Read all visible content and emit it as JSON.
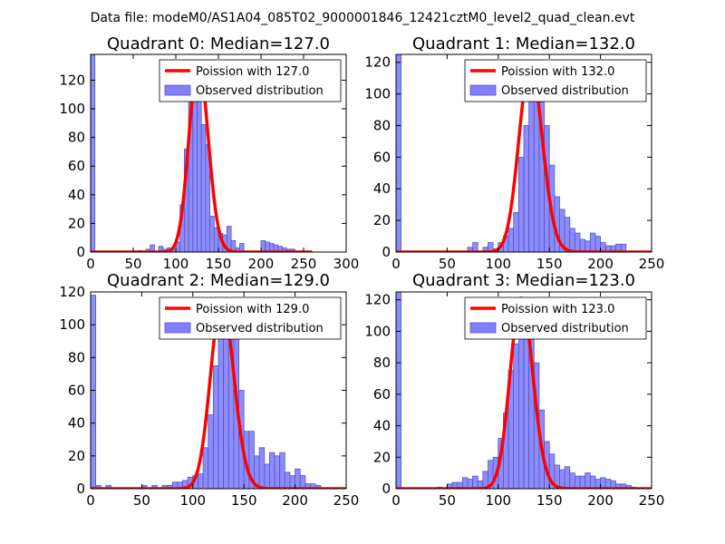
{
  "figure_title": "Data file: modeM0/AS1A04_085T02_9000001846_12421cztM0_level2_quad_clean.evt",
  "colors": {
    "bar_fill": "#8080ff",
    "bar_edge": "#5555bb",
    "curve": "#ff0000"
  },
  "chart_data": [
    {
      "type": "bar",
      "title": "Quadrant 0: Median=127.0",
      "median": 127.0,
      "legend": {
        "line_label": "Poission with 127.0",
        "bar_label": "Observed distribution",
        "placement": "top-right"
      },
      "xlim": [
        0,
        300
      ],
      "ylim": [
        0,
        138
      ],
      "xticks": [
        0,
        50,
        100,
        150,
        200,
        250,
        300
      ],
      "yticks": [
        0,
        20,
        40,
        60,
        80,
        100,
        120
      ],
      "bin_width": 5,
      "bins": [
        [
          0,
          138
        ],
        [
          55,
          1
        ],
        [
          65,
          2
        ],
        [
          70,
          5
        ],
        [
          80,
          4
        ],
        [
          85,
          2
        ],
        [
          90,
          3
        ],
        [
          95,
          2
        ],
        [
          100,
          7
        ],
        [
          105,
          33
        ],
        [
          110,
          72
        ],
        [
          115,
          118
        ],
        [
          120,
          125
        ],
        [
          125,
          127
        ],
        [
          130,
          89
        ],
        [
          135,
          75
        ],
        [
          140,
          25
        ],
        [
          145,
          17
        ],
        [
          150,
          13
        ],
        [
          155,
          12
        ],
        [
          160,
          18
        ],
        [
          165,
          8
        ],
        [
          170,
          3
        ],
        [
          175,
          6
        ],
        [
          200,
          8
        ],
        [
          205,
          7
        ],
        [
          210,
          6
        ],
        [
          215,
          5
        ],
        [
          220,
          4
        ],
        [
          225,
          3
        ],
        [
          230,
          2
        ],
        [
          235,
          2
        ]
      ],
      "curve_peak": 133
    },
    {
      "type": "bar",
      "title": "Quadrant 1: Median=132.0",
      "median": 132.0,
      "legend": {
        "line_label": "Poission with 132.0",
        "bar_label": "Observed distribution",
        "placement": "top-right"
      },
      "xlim": [
        0,
        250
      ],
      "ylim": [
        0,
        125
      ],
      "xticks": [
        0,
        50,
        100,
        150,
        200,
        250
      ],
      "yticks": [
        0,
        20,
        40,
        60,
        80,
        100,
        120
      ],
      "bin_width": 5,
      "bins": [
        [
          0,
          125
        ],
        [
          70,
          3
        ],
        [
          75,
          6
        ],
        [
          85,
          3
        ],
        [
          90,
          6
        ],
        [
          95,
          2
        ],
        [
          100,
          6
        ],
        [
          105,
          10
        ],
        [
          110,
          15
        ],
        [
          115,
          25
        ],
        [
          120,
          60
        ],
        [
          125,
          80
        ],
        [
          130,
          100
        ],
        [
          135,
          115
        ],
        [
          140,
          95
        ],
        [
          145,
          80
        ],
        [
          150,
          55
        ],
        [
          155,
          35
        ],
        [
          160,
          27
        ],
        [
          165,
          22
        ],
        [
          170,
          15
        ],
        [
          175,
          12
        ],
        [
          180,
          8
        ],
        [
          185,
          7
        ],
        [
          190,
          12
        ],
        [
          195,
          10
        ],
        [
          200,
          6
        ],
        [
          205,
          4
        ],
        [
          210,
          4
        ],
        [
          215,
          5
        ],
        [
          220,
          5
        ]
      ],
      "curve_peak": 118
    },
    {
      "type": "bar",
      "title": "Quadrant 2: Median=129.0",
      "median": 129.0,
      "legend": {
        "line_label": "Poission with 129.0",
        "bar_label": "Observed distribution",
        "placement": "top-right"
      },
      "xlim": [
        0,
        250
      ],
      "ylim": [
        0,
        120
      ],
      "xticks": [
        0,
        50,
        100,
        150,
        200,
        250
      ],
      "yticks": [
        0,
        20,
        40,
        60,
        80,
        100,
        120
      ],
      "bin_width": 5,
      "bins": [
        [
          0,
          118
        ],
        [
          5,
          2
        ],
        [
          15,
          2
        ],
        [
          50,
          2
        ],
        [
          60,
          2
        ],
        [
          70,
          2
        ],
        [
          75,
          2
        ],
        [
          80,
          4
        ],
        [
          85,
          4
        ],
        [
          90,
          5
        ],
        [
          95,
          7
        ],
        [
          100,
          8
        ],
        [
          105,
          9
        ],
        [
          110,
          25
        ],
        [
          115,
          45
        ],
        [
          120,
          75
        ],
        [
          125,
          100
        ],
        [
          130,
          110
        ],
        [
          135,
          115
        ],
        [
          140,
          95
        ],
        [
          145,
          60
        ],
        [
          150,
          35
        ],
        [
          155,
          35
        ],
        [
          160,
          20
        ],
        [
          165,
          25
        ],
        [
          170,
          15
        ],
        [
          175,
          22
        ],
        [
          180,
          20
        ],
        [
          185,
          22
        ],
        [
          190,
          10
        ],
        [
          195,
          8
        ],
        [
          200,
          12
        ],
        [
          205,
          8
        ],
        [
          210,
          3
        ],
        [
          215,
          3
        ],
        [
          220,
          2
        ]
      ],
      "curve_peak": 115
    },
    {
      "type": "bar",
      "title": "Quadrant 3: Median=123.0",
      "median": 123.0,
      "legend": {
        "line_label": "Poission with 123.0",
        "bar_label": "Observed distribution",
        "placement": "top-right"
      },
      "xlim": [
        0,
        250
      ],
      "ylim": [
        0,
        125
      ],
      "xticks": [
        0,
        50,
        100,
        150,
        200,
        250
      ],
      "yticks": [
        0,
        20,
        40,
        60,
        80,
        100,
        120
      ],
      "bin_width": 5,
      "bins": [
        [
          0,
          125
        ],
        [
          40,
          1
        ],
        [
          50,
          3
        ],
        [
          55,
          4
        ],
        [
          60,
          4
        ],
        [
          65,
          7
        ],
        [
          70,
          6
        ],
        [
          75,
          8
        ],
        [
          80,
          5
        ],
        [
          85,
          11
        ],
        [
          90,
          18
        ],
        [
          95,
          20
        ],
        [
          100,
          32
        ],
        [
          105,
          48
        ],
        [
          110,
          75
        ],
        [
          115,
          92
        ],
        [
          120,
          115
        ],
        [
          125,
          120
        ],
        [
          130,
          105
        ],
        [
          135,
          80
        ],
        [
          140,
          50
        ],
        [
          145,
          30
        ],
        [
          150,
          22
        ],
        [
          155,
          15
        ],
        [
          160,
          12
        ],
        [
          165,
          14
        ],
        [
          170,
          10
        ],
        [
          175,
          8
        ],
        [
          180,
          8
        ],
        [
          185,
          10
        ],
        [
          190,
          8
        ],
        [
          195,
          6
        ],
        [
          200,
          7
        ],
        [
          205,
          6
        ],
        [
          210,
          5
        ],
        [
          215,
          3
        ],
        [
          220,
          3
        ],
        [
          225,
          2
        ],
        [
          230,
          1
        ]
      ],
      "curve_peak": 121
    }
  ]
}
